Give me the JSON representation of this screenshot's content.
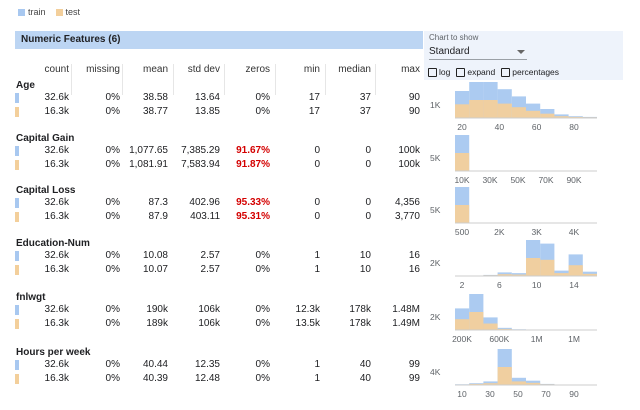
{
  "legend": {
    "train": "train",
    "test": "test"
  },
  "section_title": "Numeric Features (6)",
  "controls": {
    "label": "Chart to show",
    "selected": "Standard",
    "log": "log",
    "expand": "expand",
    "percentages": "percentages"
  },
  "columns": [
    "count",
    "missing",
    "mean",
    "std dev",
    "zeros",
    "min",
    "median",
    "max"
  ],
  "features": [
    {
      "name": "Age",
      "rows": [
        [
          "32.6k",
          "0%",
          "38.58",
          "13.64",
          "0%",
          "17",
          "37",
          "90"
        ],
        [
          "16.3k",
          "0%",
          "38.77",
          "13.85",
          "0%",
          "17",
          "37",
          "90"
        ]
      ],
      "zeros_red": false,
      "y_label": "1K",
      "x_ticks": [
        "20",
        "40",
        "60",
        "80"
      ]
    },
    {
      "name": "Capital Gain",
      "rows": [
        [
          "32.6k",
          "0%",
          "1,077.65",
          "7,385.29",
          "91.67%",
          "0",
          "0",
          "100k"
        ],
        [
          "16.3k",
          "0%",
          "1,081.91",
          "7,583.94",
          "91.87%",
          "0",
          "0",
          "100k"
        ]
      ],
      "zeros_red": true,
      "y_label": "5K",
      "x_ticks": [
        "10K",
        "30K",
        "50K",
        "70K",
        "90K"
      ]
    },
    {
      "name": "Capital Loss",
      "rows": [
        [
          "32.6k",
          "0%",
          "87.3",
          "402.96",
          "95.33%",
          "0",
          "0",
          "4,356"
        ],
        [
          "16.3k",
          "0%",
          "87.9",
          "403.11",
          "95.31%",
          "0",
          "0",
          "3,770"
        ]
      ],
      "zeros_red": true,
      "y_label": "5K",
      "x_ticks": [
        "500",
        "2K",
        "3K",
        "4K"
      ]
    },
    {
      "name": "Education-Num",
      "rows": [
        [
          "32.6k",
          "0%",
          "10.08",
          "2.57",
          "0%",
          "1",
          "10",
          "16"
        ],
        [
          "16.3k",
          "0%",
          "10.07",
          "2.57",
          "0%",
          "1",
          "10",
          "16"
        ]
      ],
      "zeros_red": false,
      "y_label": "2K",
      "x_ticks": [
        "2",
        "6",
        "10",
        "14"
      ]
    },
    {
      "name": "fnlwgt",
      "rows": [
        [
          "32.6k",
          "0%",
          "190k",
          "106k",
          "0%",
          "12.3k",
          "178k",
          "1.48M"
        ],
        [
          "16.3k",
          "0%",
          "189k",
          "106k",
          "0%",
          "13.5k",
          "178k",
          "1.49M"
        ]
      ],
      "zeros_red": false,
      "y_label": "2K",
      "x_ticks": [
        "200K",
        "600K",
        "1M",
        "1M"
      ]
    },
    {
      "name": "Hours per week",
      "rows": [
        [
          "32.6k",
          "0%",
          "40.44",
          "12.35",
          "0%",
          "1",
          "40",
          "99"
        ],
        [
          "16.3k",
          "0%",
          "40.39",
          "12.48",
          "0%",
          "1",
          "40",
          "99"
        ]
      ],
      "zeros_red": false,
      "y_label": "4K",
      "x_ticks": [
        "10",
        "30",
        "50",
        "70",
        "90"
      ]
    }
  ],
  "colors": {
    "train": "#a8c8f0",
    "test": "#f3cf9b",
    "red": "#d40000",
    "header": "#bcd5f3"
  },
  "chart_data": [
    {
      "type": "bar",
      "title": "Age",
      "series": [
        {
          "name": "train",
          "values": [
            0.75,
            1.0,
            1.0,
            0.8,
            0.6,
            0.4,
            0.25,
            0.1,
            0.05,
            0.03
          ]
        },
        {
          "name": "test",
          "values": [
            0.38,
            0.5,
            0.5,
            0.4,
            0.3,
            0.2,
            0.12,
            0.05,
            0.03,
            0.02
          ]
        }
      ]
    },
    {
      "type": "bar",
      "title": "Capital Gain",
      "series": [
        {
          "name": "train",
          "values": [
            1.0,
            0,
            0,
            0,
            0,
            0,
            0,
            0,
            0,
            0.01
          ]
        },
        {
          "name": "test",
          "values": [
            0.5,
            0,
            0,
            0,
            0,
            0,
            0,
            0,
            0,
            0
          ]
        }
      ]
    },
    {
      "type": "bar",
      "title": "Capital Loss",
      "series": [
        {
          "name": "train",
          "values": [
            1.0,
            0,
            0,
            0,
            0,
            0,
            0,
            0,
            0,
            0
          ]
        },
        {
          "name": "test",
          "values": [
            0.5,
            0,
            0,
            0,
            0,
            0,
            0,
            0,
            0,
            0
          ]
        }
      ]
    },
    {
      "type": "bar",
      "title": "Education-Num",
      "series": [
        {
          "name": "train",
          "values": [
            0.0,
            0.01,
            0.03,
            0.1,
            0.08,
            1.0,
            0.9,
            0.15,
            0.6,
            0.12
          ]
        },
        {
          "name": "test",
          "values": [
            0.0,
            0.01,
            0.02,
            0.05,
            0.04,
            0.5,
            0.45,
            0.08,
            0.3,
            0.06
          ]
        }
      ]
    },
    {
      "type": "bar",
      "title": "fnlwgt",
      "series": [
        {
          "name": "train",
          "values": [
            0.6,
            1.0,
            0.35,
            0.06,
            0.02,
            0.01,
            0,
            0,
            0,
            0
          ]
        },
        {
          "name": "test",
          "values": [
            0.3,
            0.5,
            0.18,
            0.03,
            0.01,
            0,
            0,
            0,
            0,
            0
          ]
        }
      ]
    },
    {
      "type": "bar",
      "title": "Hours per week",
      "series": [
        {
          "name": "train",
          "values": [
            0.02,
            0.05,
            0.1,
            1.0,
            0.2,
            0.12,
            0.03,
            0.01,
            0.01,
            0.01
          ]
        },
        {
          "name": "test",
          "values": [
            0.01,
            0.03,
            0.05,
            0.5,
            0.1,
            0.06,
            0.02,
            0,
            0,
            0
          ]
        }
      ]
    }
  ]
}
